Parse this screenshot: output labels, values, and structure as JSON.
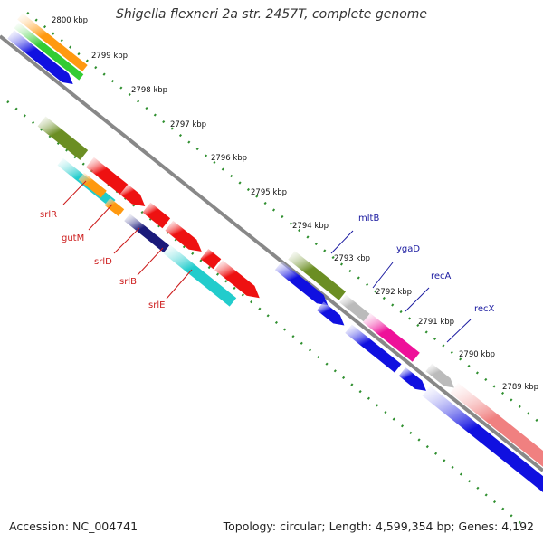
{
  "map": {
    "title": "Shigella flexneri 2a str. 2457T, complete genome",
    "accession_label": "Accession: NC_004741",
    "genome_stats": "Topology: circular; Length: 4,599,354 bp; Genes: 4,192"
  },
  "scale": {
    "unit": "kbp",
    "ticks": [
      {
        "kbp": 2800,
        "label": "2800 kbp"
      },
      {
        "kbp": 2799,
        "label": "2799 kbp"
      },
      {
        "kbp": 2798,
        "label": "2798 kbp"
      },
      {
        "kbp": 2797,
        "label": "2797 kbp"
      },
      {
        "kbp": 2796,
        "label": "2796 kbp"
      },
      {
        "kbp": 2795,
        "label": "2795 kbp"
      },
      {
        "kbp": 2794,
        "label": "2794 kbp"
      },
      {
        "kbp": 2793,
        "label": "2793 kbp"
      },
      {
        "kbp": 2792,
        "label": "2792 kbp"
      },
      {
        "kbp": 2791,
        "label": "2791 kbp"
      },
      {
        "kbp": 2790,
        "label": "2790 kbp"
      },
      {
        "kbp": 2789,
        "label": "2789 kbp"
      }
    ]
  },
  "gene_labels": {
    "forward_strand": [
      {
        "name": "mltB"
      },
      {
        "name": "ygaD"
      },
      {
        "name": "recA"
      },
      {
        "name": "recX"
      }
    ],
    "reverse_strand": [
      {
        "name": "srlR"
      },
      {
        "name": "gutM"
      },
      {
        "name": "srlD"
      },
      {
        "name": "srlB"
      },
      {
        "name": "srlE"
      }
    ]
  },
  "colors": {
    "backbone": "#888888",
    "tick_dots": "#2f8f2f",
    "forward_label": "#1a1aa0",
    "reverse_label": "#cc1a1a",
    "cds_blue": "#1010e0",
    "gene_red": "#ee1111",
    "gene_cyan": "#22cccc",
    "gene_olive": "#6b8e23",
    "gene_orange": "#ff9910",
    "gene_green": "#33cc33",
    "gene_magenta": "#ee1199",
    "gene_grey": "#bbbbbb",
    "gene_pink": "#f08080",
    "gene_navy": "#1a1a7a"
  }
}
